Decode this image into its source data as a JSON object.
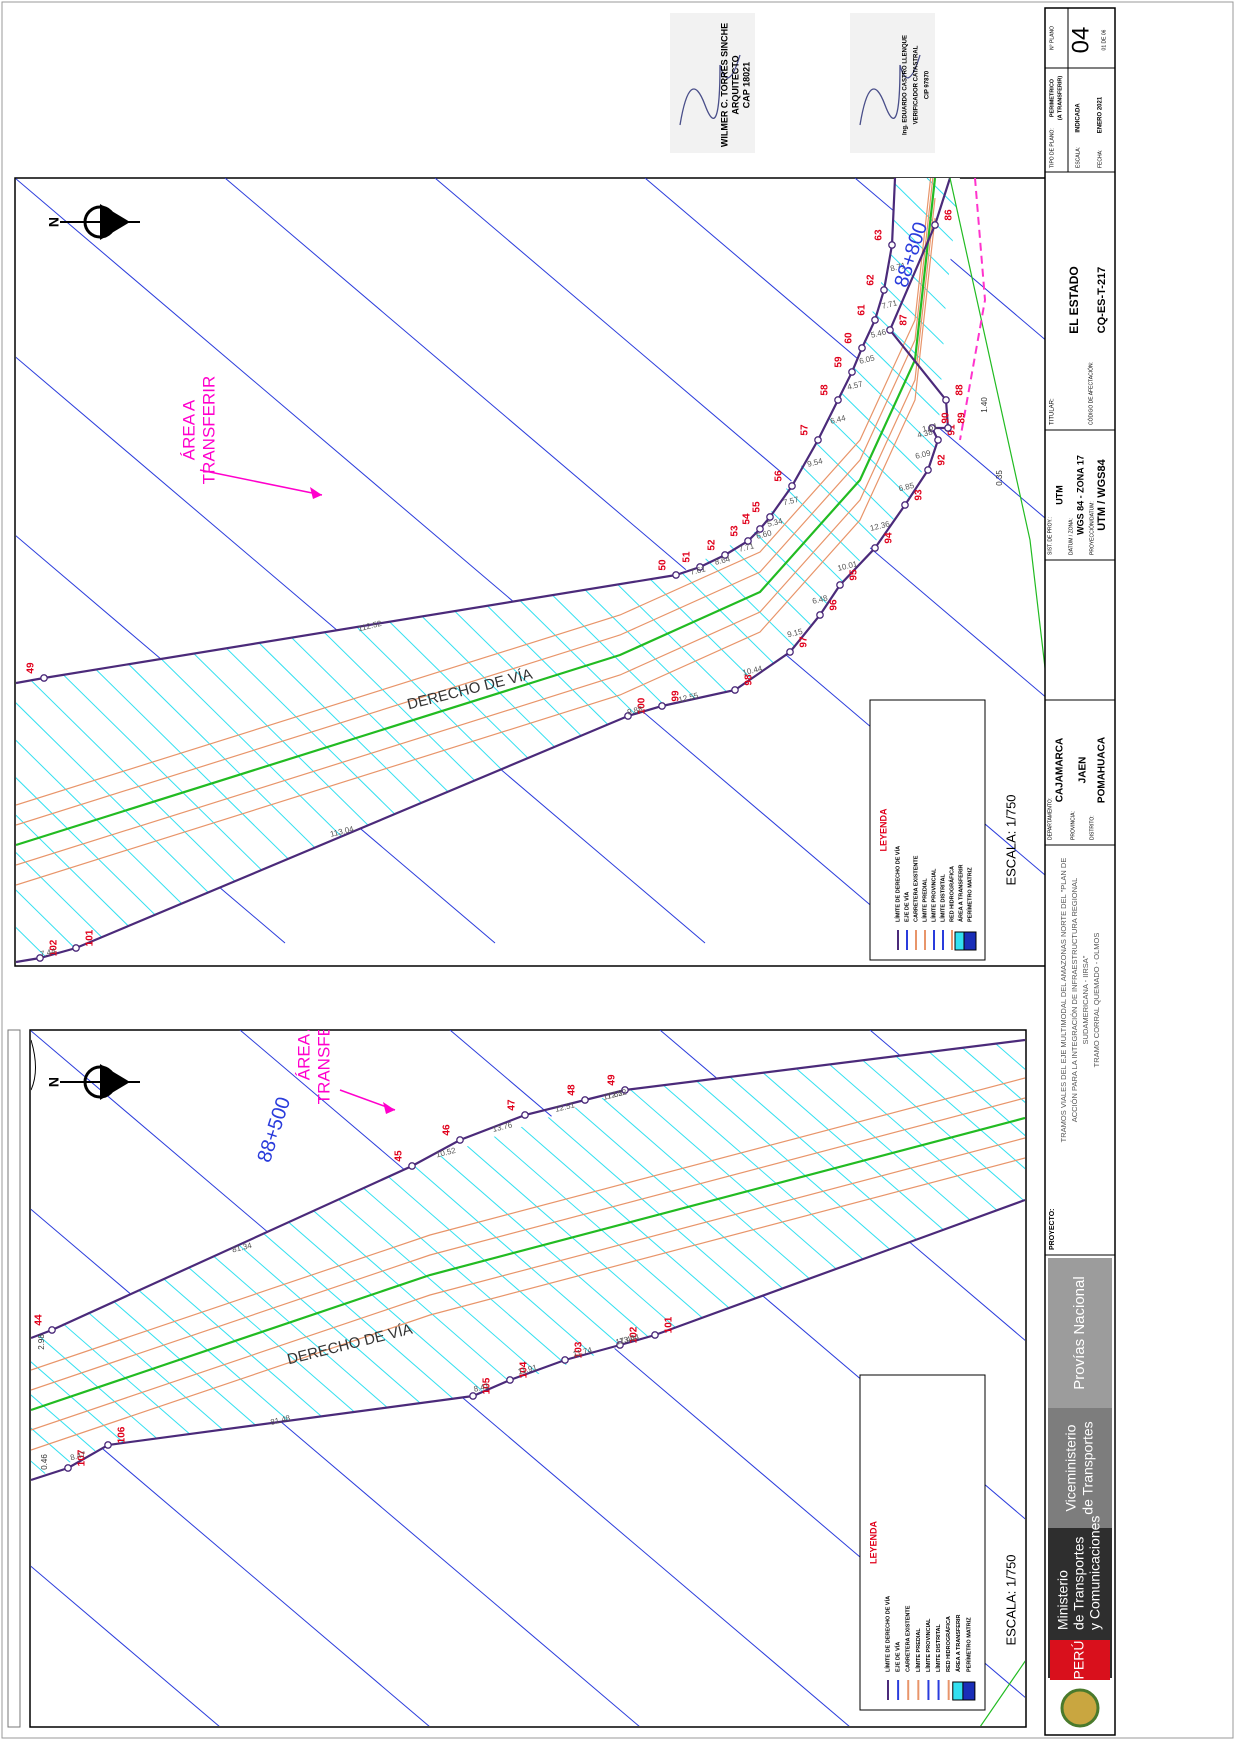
{
  "signatures": [
    {
      "name": "WILMER C. TORRES SINCHE",
      "title": "ARQUITECTO",
      "registration": "CAP 18021"
    },
    {
      "name": "Ing. EDUARDO CASTRO LLENQUE",
      "title": "VERIFICADOR CATASTRAL",
      "registration": "CIP 97870"
    }
  ],
  "maps": [
    {
      "north": "N",
      "km": "88+800",
      "area_label": [
        "ÁREA A",
        "TRANSFERIR"
      ],
      "road_label": "DERECHO  DE  VÍA",
      "scale": "ESCALA: 1/750",
      "upper_points": [
        "49",
        "50",
        "51",
        "52",
        "53",
        "54",
        "55",
        "56",
        "57",
        "58",
        "59",
        "60",
        "61",
        "62",
        "63"
      ],
      "upper_distances": [
        "112.52",
        "7.61",
        "8.64",
        "7.71",
        "6.60",
        "5.34",
        "7.57",
        "9.54",
        "6.44",
        "4.57",
        "6.05",
        "5.46",
        "7.71",
        "8.71"
      ],
      "lower_points": [
        "102",
        "101",
        "100",
        "99",
        "98",
        "97",
        "96",
        "95",
        "94",
        "93",
        "92",
        "91",
        "90",
        "89",
        "88",
        "87",
        "86"
      ],
      "lower_distances": [
        "7.44",
        "113.04",
        "9.88",
        "12.55",
        "10.44",
        "9.15",
        "6.48",
        "10.01",
        "12.36",
        "6.85",
        "6.09",
        "4.38",
        "1.61"
      ],
      "extra_distances": [
        "1.40",
        "0.35"
      ]
    },
    {
      "north": "N",
      "km": "88+500",
      "area_label": [
        "ÁREA A",
        "TRANSFERIR"
      ],
      "road_label": "DERECHO  DE  VÍA",
      "scale": "ESCALA: 1/750",
      "upper_points": [
        "44",
        "45",
        "46",
        "47",
        "48",
        "49"
      ],
      "upper_distances": [
        "81.34",
        "10.52",
        "13.76",
        "12.51",
        "7.62",
        "112.52"
      ],
      "lower_points": [
        "107",
        "106",
        "105",
        "104",
        "103",
        "102",
        "101"
      ],
      "lower_distances": [
        "8.47",
        "81.48",
        "8.41",
        "11.91",
        "11.74",
        "7.44",
        "113.04"
      ],
      "extra_distances": [
        "0.46",
        "2.98"
      ]
    }
  ],
  "legend": {
    "title": "LEYENDA",
    "items": [
      "LÍMITE DE DERECHO DE VÍA",
      "EJE DE VÍA",
      "CARRETERA EXISTENTE",
      "LÍMITE PREDIAL",
      "LÍMITE PROVINCIAL",
      "LÍMITE DISTRITAL",
      "RED HIDROGRÁFICA",
      "ÁREA A TRANSFERIR",
      "PERÍMETRO MATRIZ"
    ]
  },
  "title_block": {
    "logos": {
      "country": "PERÚ",
      "ministry": [
        "Ministerio",
        "de Transportes",
        "y Comunicaciones"
      ],
      "vice": [
        "Viceministerio",
        "de Transportes"
      ],
      "agency": "Provías Nacional"
    },
    "project_label": "PROYECTO:",
    "project": [
      "TRAMOS VIALES DEL EJE MULTIMODAL DEL AMAZONAS NORTE DEL \"PLAN DE",
      "ACCIÓN PARA LA INTEGRACIÓN DE INFRAESTRUCTURA REGIONAL",
      "SUDAMERICANA - IIRSA\"",
      "TRAMO CORRAL QUEMADO - OLMOS"
    ],
    "department_label": "DEPARTAMENTO:",
    "department": "CAJAMARCA",
    "province_label": "PROVINCIA:",
    "province": "JAEN",
    "district_label": "DISTRITO:",
    "district": "POMAHUACA",
    "projection_label": "SIST. DE PROY.:",
    "projection": "UTM",
    "datum_label": "DATUM / ZONA:",
    "datum": "WGS 84 - ZONA 17",
    "proj_datum_label": "PROYECCIÓN/DATUM:",
    "proj_datum": "UTM / WGS84",
    "owner_label": "TITULAR:",
    "owner": "EL ESTADO",
    "code_label": "CÓDIGO DE AFECTACIÓN:",
    "code": "CQ-ES-T-217",
    "plan_type_label": "TIPO DE PLANO:",
    "plan_type": [
      "PERIMETRICO",
      "(A TRANSFERIR)"
    ],
    "scale_label": "ESCALA:",
    "scale": "INDICADA",
    "date_label": "FECHA:",
    "date": "ENERO 2021",
    "plan_number_label": "N° PLANO",
    "plan_number": "04",
    "sheet": "01 DE 06"
  }
}
